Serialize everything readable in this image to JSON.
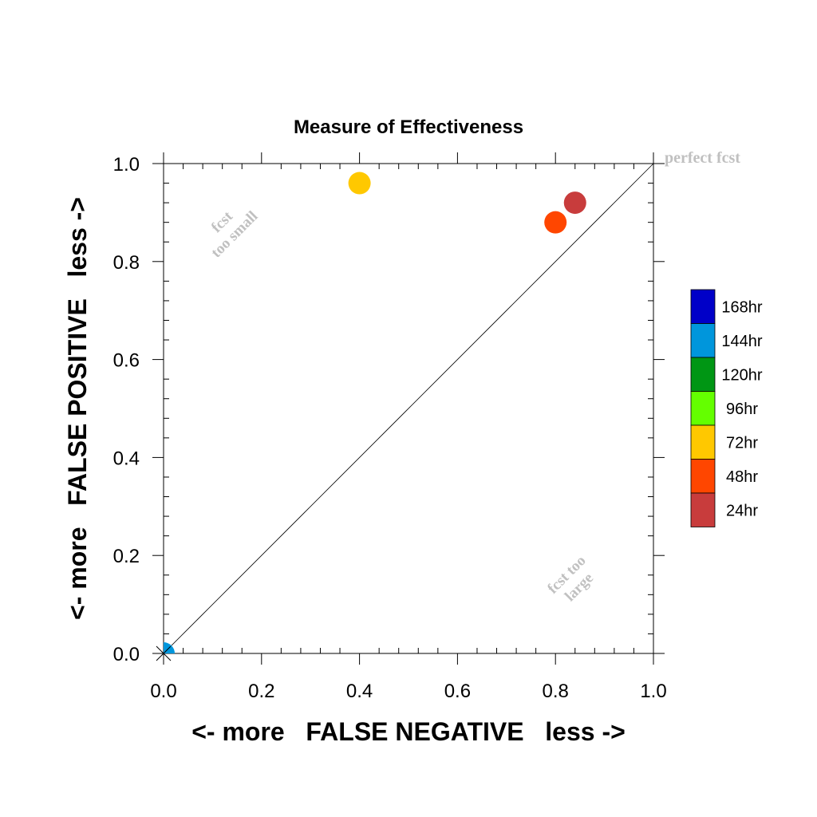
{
  "chart_data": {
    "type": "scatter",
    "title": "Measure of Effectiveness",
    "xlabel": "<- more   FALSE NEGATIVE   less ->",
    "ylabel": "<- more   FALSE POSITIVE   less ->",
    "xlim": [
      0.0,
      1.0
    ],
    "ylim": [
      0.0,
      1.0
    ],
    "x_ticks": [
      "0.0",
      "0.2",
      "0.4",
      "0.6",
      "0.8",
      "1.0"
    ],
    "y_ticks": [
      "0.0",
      "0.2",
      "0.4",
      "0.6",
      "0.8",
      "1.0"
    ],
    "grid": false,
    "diagonal_reference_line": true,
    "annotations": {
      "perfect": "perfect fcst",
      "too_small_line1": "fcst",
      "too_small_line2": "too small",
      "too_large_line1": "fcst too",
      "too_large_line2": "large"
    },
    "legend_position": "right",
    "legend": [
      {
        "label": "168hr",
        "color": "#0000c8"
      },
      {
        "label": "144hr",
        "color": "#0096dc"
      },
      {
        "label": "120hr",
        "color": "#009614"
      },
      {
        "label": "96hr",
        "color": "#64ff00"
      },
      {
        "label": "72hr",
        "color": "#ffc800"
      },
      {
        "label": "48hr",
        "color": "#ff4600"
      },
      {
        "label": "24hr",
        "color": "#c83c3c"
      }
    ],
    "points": [
      {
        "lead": "144hr",
        "x": 0.0,
        "y": 0.0,
        "color": "#0096dc"
      },
      {
        "lead": "72hr",
        "x": 0.4,
        "y": 0.96,
        "color": "#ffc800"
      },
      {
        "lead": "48hr",
        "x": 0.8,
        "y": 0.88,
        "color": "#ff4600"
      },
      {
        "lead": "24hr",
        "x": 0.84,
        "y": 0.92,
        "color": "#c83c3c"
      }
    ]
  }
}
